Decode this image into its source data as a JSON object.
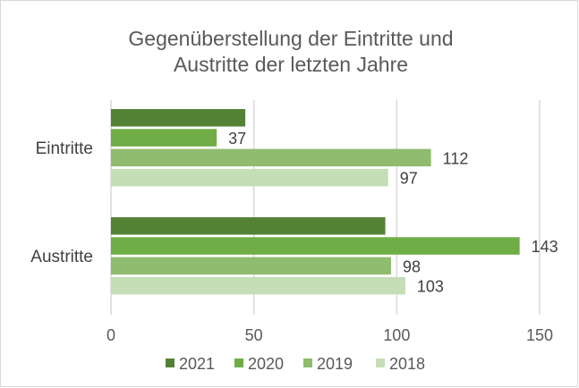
{
  "chart_data": {
    "type": "bar",
    "orientation": "horizontal",
    "title_lines": [
      "Gegenüberstellung der Eintritte und",
      "Austritte der letzten Jahre"
    ],
    "categories": [
      "Eintritte",
      "Austritte"
    ],
    "series": [
      {
        "name": "2021",
        "color": "#548235",
        "values": [
          47,
          96
        ],
        "labels": [
          "",
          ""
        ]
      },
      {
        "name": "2020",
        "color": "#70ad47",
        "values": [
          37,
          143
        ],
        "labels": [
          "37",
          "143"
        ]
      },
      {
        "name": "2019",
        "color": "#8fbc6e",
        "values": [
          112,
          98
        ],
        "labels": [
          "112",
          "98"
        ]
      },
      {
        "name": "2018",
        "color": "#c5deb5",
        "values": [
          97,
          103
        ],
        "labels": [
          "97",
          "103"
        ]
      }
    ],
    "xlim": [
      0,
      150
    ],
    "xticks": [
      "0",
      "50",
      "100",
      "150"
    ],
    "grid": true,
    "legend": "bottom"
  }
}
